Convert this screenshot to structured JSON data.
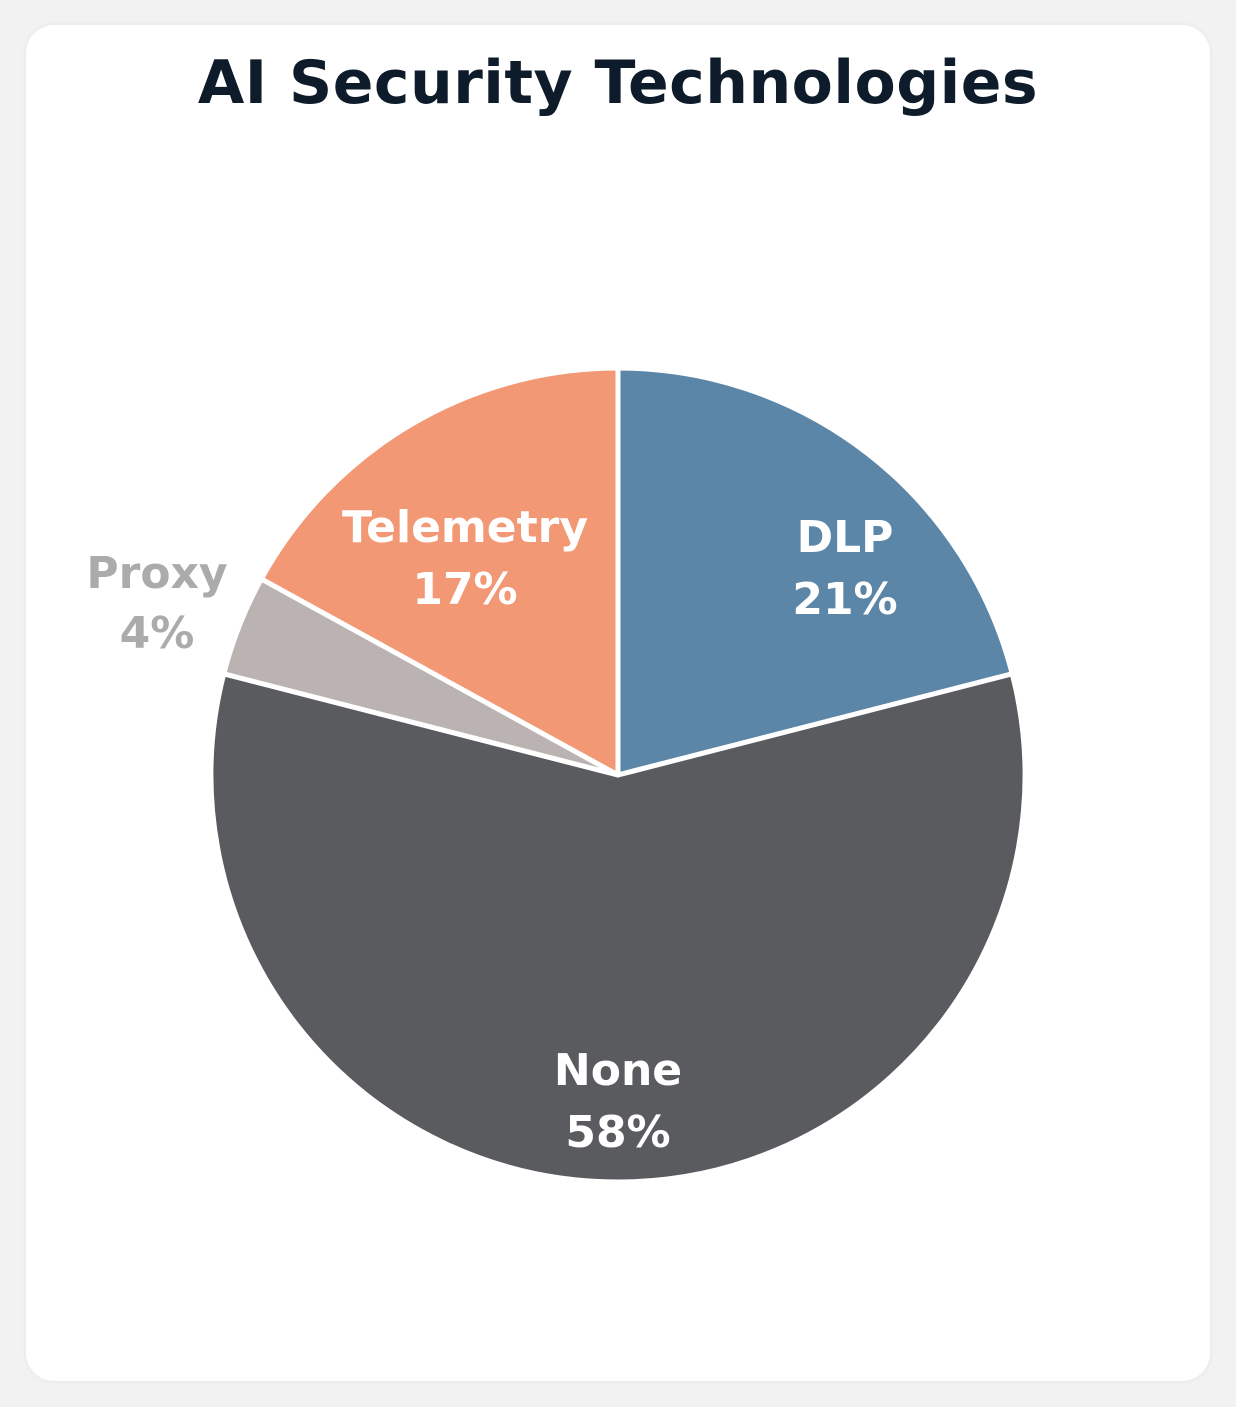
{
  "chart_data": {
    "type": "pie",
    "title": "AI Security Technologies",
    "slices": [
      {
        "label": "DLP",
        "value": 21,
        "display": "21%",
        "color": "#5b86a7",
        "text_color": "#ffffff"
      },
      {
        "label": "None",
        "value": 58,
        "display": "58%",
        "color": "#5a5b5e",
        "text_color": "#ffffff"
      },
      {
        "label": "Proxy",
        "value": 4,
        "display": "4%",
        "color": "#bab3b1",
        "text_color": "#ababab"
      },
      {
        "label": "Telemetry",
        "value": 17,
        "display": "17%",
        "color": "#f29874",
        "text_color": "#ffffff"
      }
    ]
  }
}
